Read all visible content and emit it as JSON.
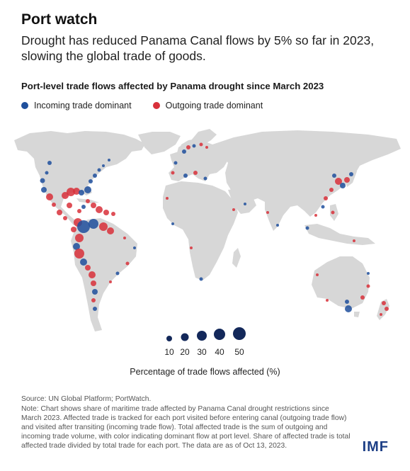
{
  "header": {
    "heading": "Port watch",
    "subtitle": "Drought has reduced Panama Canal flows by 5% so far in 2023, slowing the global trade of goods."
  },
  "map": {
    "title": "Port-level trade flows affected by Panama drought since March 2023",
    "legend": {
      "incoming_label": "Incoming trade dominant",
      "outgoing_label": "Outgoing trade dominant"
    },
    "colors": {
      "incoming": "#1f4f9c",
      "outgoing": "#d8303a",
      "land": "#d7d7d7",
      "size_legend": "#13285a"
    },
    "size_legend": {
      "values": [
        "10",
        "20",
        "30",
        "40",
        "50"
      ],
      "caption": "Percentage of trade flows affected (%)"
    }
  },
  "footer": {
    "source": "Source: UN Global Platform; PortWatch.",
    "note": "Note: Chart shows share of maritime trade affected by Panama Canal drought restrictions since March 2023. Affected trade is tracked for each port visited before entering canal (outgoing trade flow) and visited after transiting (incoming trade flow). Total affected trade is the sum of outgoing and incoming trade volume, with color indicating dominant flow at port level. Share of affected trade is total affected trade divided by total trade for each port. The data are as of Oct 13, 2023.",
    "logo": "IMF"
  }
}
